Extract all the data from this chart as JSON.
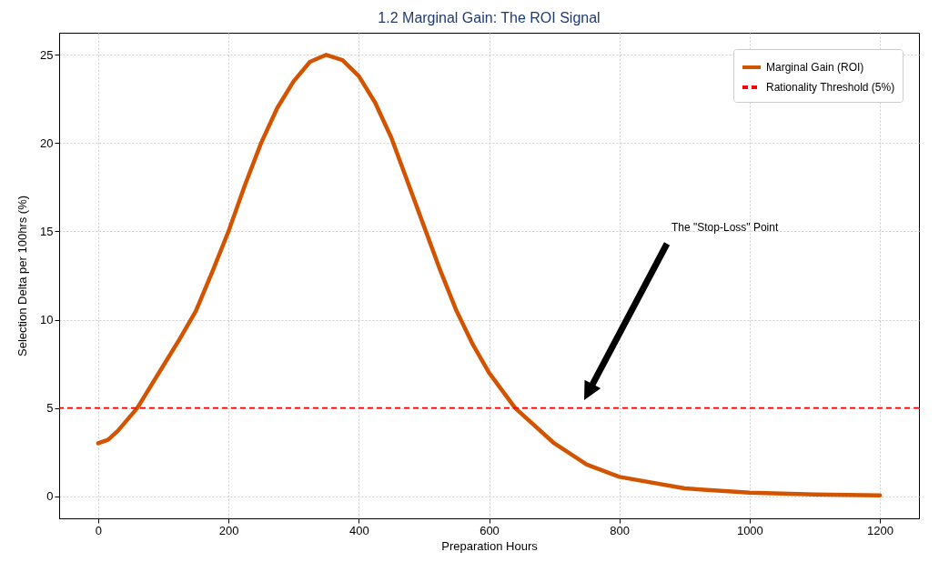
{
  "chart_data": {
    "type": "line",
    "title": "1.2 Marginal Gain: The ROI Signal",
    "xlabel": "Preparation Hours",
    "ylabel": "Selection Delta per 100hrs (%)",
    "x": [
      0,
      15,
      30,
      60,
      100,
      125,
      150,
      175,
      200,
      225,
      250,
      275,
      300,
      325,
      350,
      375,
      400,
      425,
      450,
      475,
      500,
      525,
      550,
      575,
      600,
      640,
      700,
      750,
      800,
      900,
      1000,
      1100,
      1200
    ],
    "series": [
      {
        "name": "Marginal Gain (ROI)",
        "color": "#d35400",
        "values": [
          3.0,
          3.2,
          3.7,
          5.0,
          7.4,
          8.9,
          10.5,
          12.7,
          15.0,
          17.6,
          20.0,
          22.0,
          23.5,
          24.6,
          25.0,
          24.7,
          23.8,
          22.3,
          20.3,
          17.8,
          15.3,
          12.8,
          10.5,
          8.6,
          7.0,
          5.0,
          3.0,
          1.8,
          1.1,
          0.45,
          0.2,
          0.1,
          0.05
        ]
      }
    ],
    "ref_lines": [
      {
        "axis": "y",
        "value": 5,
        "label": "Rationality Threshold (5%)",
        "color": "#ff0000",
        "line_style": "dashed"
      }
    ],
    "annotations": [
      "The \"Stop-Loss\" Point"
    ],
    "xlim": [
      -60,
      1260
    ],
    "ylim": [
      -1.25,
      26.25
    ],
    "xticks": [
      0,
      200,
      400,
      600,
      800,
      1000,
      1200
    ],
    "yticks": [
      0,
      5,
      10,
      15,
      20,
      25
    ],
    "grid": true,
    "legend": "top right",
    "marker": "none",
    "line_style": "solid"
  }
}
